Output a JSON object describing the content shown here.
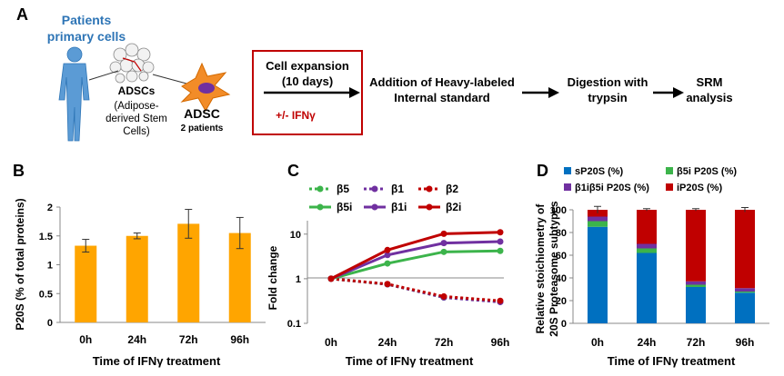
{
  "panel_a": {
    "letter": "A",
    "patients_line1": "Patients",
    "patients_line2": "primary cells",
    "adscs_title": "ADSCs",
    "adscs_desc": [
      "(Adipose-",
      "derived Stem",
      "Cells)"
    ],
    "adsc_label": "ADSC",
    "adsc_sub": "2 patients",
    "box_line1": "Cell expansion",
    "box_line2": "(10 days)",
    "box_treatment": "+/- IFNγ",
    "step1_line1": "Addition of Heavy-labeled",
    "step1_line2": "Internal standard",
    "step2_line1": "Digestion with",
    "step2_line2": "trypsin",
    "step3_line1": "SRM",
    "step3_line2": "analysis",
    "colors": {
      "patients_text": "#2e75b6",
      "box_border": "#c00000",
      "treatment_text": "#c00000",
      "cell_fill": "#f28c28",
      "body_fill": "#5b9bd5"
    }
  },
  "chart_data": [
    {
      "panel": "B",
      "type": "bar",
      "categories": [
        "0h",
        "24h",
        "72h",
        "96h"
      ],
      "values": [
        1.33,
        1.5,
        1.71,
        1.55
      ],
      "errors": [
        0.11,
        0.05,
        0.25,
        0.27
      ],
      "ylabel": "P20S (% of total proteins)",
      "xlabel": "Time of IFNγ treatment",
      "ylim": [
        0,
        2
      ],
      "yticks": [
        "0",
        "0.5",
        "1",
        "1.5",
        "2"
      ],
      "color": "#ffa500"
    },
    {
      "panel": "C",
      "type": "line",
      "x": [
        "0h",
        "24h",
        "72h",
        "96h"
      ],
      "yscale": "log",
      "ylim": [
        0.1,
        20
      ],
      "yticks": [
        "0.1",
        "1",
        "10"
      ],
      "ylabel": "Fold change",
      "xlabel": "Time of IFNγ treatment",
      "series": [
        {
          "name": "β5",
          "values": [
            1,
            0.75,
            0.38,
            0.31
          ],
          "color": "#3cb44b",
          "dashed": true
        },
        {
          "name": "β1",
          "values": [
            1,
            0.75,
            0.38,
            0.3
          ],
          "color": "#7030a0",
          "dashed": true
        },
        {
          "name": "β2",
          "values": [
            1,
            0.76,
            0.4,
            0.32
          ],
          "color": "#c00000",
          "dashed": true
        },
        {
          "name": "β5i",
          "values": [
            1,
            2.2,
            4.0,
            4.2
          ],
          "color": "#3cb44b",
          "dashed": false
        },
        {
          "name": "β1i",
          "values": [
            1,
            3.4,
            6.3,
            6.8
          ],
          "color": "#7030a0",
          "dashed": false
        },
        {
          "name": "β2i",
          "values": [
            1,
            4.4,
            10.2,
            11.0
          ],
          "color": "#c00000",
          "dashed": false
        }
      ],
      "legend": "top"
    },
    {
      "panel": "D",
      "type": "bar",
      "stacked": true,
      "categories": [
        "0h",
        "24h",
        "72h",
        "96h"
      ],
      "series": [
        {
          "name": "sP20S (%)",
          "values": [
            85,
            62,
            32,
            27
          ],
          "color": "#0070c0"
        },
        {
          "name": "β5i P20S (%)",
          "values": [
            5,
            4,
            2,
            1
          ],
          "color": "#3cb44b"
        },
        {
          "name": "β1iβ5i P20S (%)",
          "values": [
            4,
            4,
            3,
            3
          ],
          "color": "#7030a0"
        },
        {
          "name": "iP20S (%)",
          "values": [
            6,
            30,
            63,
            69
          ],
          "color": "#c00000"
        }
      ],
      "totals_error": [
        3,
        1,
        1,
        2
      ],
      "ylabel_line1": "Relative stoichiometry of",
      "ylabel_line2": "20S Proteasome subtypes",
      "xlabel": "Time of IFNγ treatment",
      "ylim": [
        0,
        100
      ],
      "yticks": [
        "0",
        "20",
        "40",
        "60",
        "80",
        "100"
      ],
      "legend": "top"
    }
  ]
}
